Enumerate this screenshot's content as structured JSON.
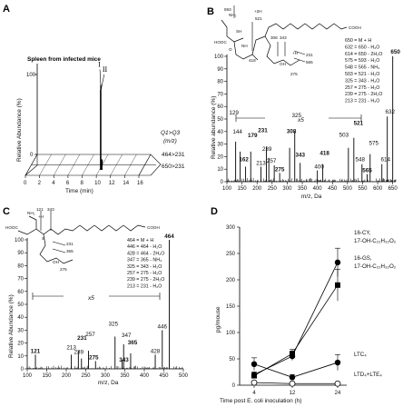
{
  "panels": {
    "A": {
      "label": "A",
      "title": "Spleen from infected mice",
      "ylabel": "Relative Abundance (%)",
      "xlabel": "Time (min)",
      "yticks": [
        "0",
        "100"
      ],
      "xticks": [
        "0",
        "2",
        "4",
        "6",
        "8",
        "10",
        "12",
        "14",
        "16"
      ],
      "peak_labels": [
        "I",
        "II"
      ],
      "q_header": "Q1>Q3",
      "q_unit": "(m/z)",
      "transitions": [
        "464>231",
        "650>231"
      ]
    },
    "B": {
      "label": "B",
      "ylabel": "Relative abundance (%)",
      "xlabel": "m/z, Da",
      "yticks": [
        "0",
        "10",
        "20",
        "30",
        "40",
        "50",
        "60",
        "70",
        "80",
        "90",
        "100"
      ],
      "xticks": [
        "100",
        "150",
        "200",
        "250",
        "300",
        "350",
        "400",
        "450",
        "500",
        "550",
        "600",
        "650"
      ],
      "magnify": "x5",
      "assignments": [
        "650 = M + H",
        "632 = 650 - H₂O",
        "614 = 650 - 2H₂O",
        "575 = 593 - H₂O",
        "548 = 565 - NH₃",
        "503 = 521 - H₂O",
        "325 = 343 - H₂O",
        "257 = 275 - H₂O",
        "239 = 275 - 2H₂O",
        "213 = 231 - H₂O"
      ],
      "structure_labels": [
        "593",
        "+2H",
        "521",
        "308",
        "343",
        "418",
        "231",
        "565",
        "275",
        "+H",
        "OH",
        "NH₂",
        "HOOC",
        "COOH",
        "SH",
        "NH",
        "O"
      ]
    },
    "C": {
      "label": "C",
      "ylabel": "Relative Abundance (%)",
      "xlabel": "m/z, Da",
      "yticks": [
        "0",
        "10",
        "20",
        "30",
        "40",
        "50",
        "60",
        "70",
        "80",
        "90",
        "100"
      ],
      "xticks": [
        "100",
        "150",
        "200",
        "250",
        "300",
        "350",
        "400",
        "450",
        "500"
      ],
      "magnify": "x5",
      "assignments": [
        "464 = M + H",
        "446 = 464 - H₂O",
        "428 = 464 - 2H₂O",
        "347 = 365 - NH₃",
        "325 = 343 - H₂O",
        "257 = 275 - H₂O",
        "239 = 275 - 2H₂O",
        "213 = 231 - H₂O"
      ],
      "structure_labels": [
        "121",
        "343",
        "+H",
        "231",
        "365",
        "275",
        "OH",
        "NH₂",
        "HOOC",
        "COOH",
        "S"
      ]
    },
    "D": {
      "label": "D",
      "ylabel": "pg/mouse",
      "xlabel": "Time post E. coli inoculation (h)",
      "yticks": [
        "0",
        "50",
        "100",
        "150",
        "200",
        "250",
        "300"
      ],
      "xticks": [
        "4",
        "12",
        "24"
      ],
      "series_labels": [
        [
          "16-CY,",
          "17-OH-C₂₂H₃₂O₂"
        ],
        [
          "16-GS,",
          "17-OH-C₂₂H₃₂O₂"
        ],
        [
          "LTC₄"
        ],
        [
          "LTD₄+LTE₄"
        ]
      ]
    }
  },
  "chart_data": [
    {
      "type": "line",
      "title": "Spleen from infected mice",
      "xlabel": "Time (min)",
      "ylabel": "Relative Abundance (%)",
      "xlim": [
        0,
        16
      ],
      "ylim": [
        0,
        100
      ],
      "series": [
        {
          "name": "464>231",
          "x": [
            9.8
          ],
          "y": [
            100
          ],
          "label": "I"
        },
        {
          "name": "650>231",
          "x": [
            10.6
          ],
          "y": [
            100
          ],
          "label": "II"
        }
      ]
    },
    {
      "type": "bar",
      "xlabel": "m/z, Da",
      "ylabel": "Relative abundance (%)",
      "xlim": [
        100,
        660
      ],
      "ylim": [
        0,
        100
      ],
      "peaks": [
        {
          "mz": 129,
          "y": 32,
          "label": "129",
          "bold": false
        },
        {
          "mz": 144,
          "y": 24,
          "label": "144",
          "bold": false
        },
        {
          "mz": 162,
          "y": 12,
          "label": "162",
          "bold": true
        },
        {
          "mz": 179,
          "y": 24,
          "label": "179",
          "bold": true
        },
        {
          "mz": 213,
          "y": 12,
          "label": "213",
          "bold": false
        },
        {
          "mz": 231,
          "y": 28,
          "label": "231",
          "bold": true
        },
        {
          "mz": 239,
          "y": 19,
          "label": "239",
          "bold": false
        },
        {
          "mz": 257,
          "y": 13,
          "label": "257",
          "bold": false
        },
        {
          "mz": 275,
          "y": 7,
          "label": "275",
          "bold": true
        },
        {
          "mz": 308,
          "y": 27,
          "label": "308",
          "bold": true
        },
        {
          "mz": 325,
          "y": 40,
          "label": "325",
          "bold": false
        },
        {
          "mz": 343,
          "y": 15,
          "label": "343",
          "bold": true
        },
        {
          "mz": 400,
          "y": 9,
          "label": "400",
          "bold": false
        },
        {
          "mz": 418,
          "y": 14,
          "label": "418",
          "bold": true
        },
        {
          "mz": 503,
          "y": 27,
          "label": "503",
          "bold": false
        },
        {
          "mz": 521,
          "y": 35,
          "label": "521",
          "bold": true
        },
        {
          "mz": 548,
          "y": 14,
          "label": "548",
          "bold": false
        },
        {
          "mz": 565,
          "y": 6,
          "label": "565",
          "bold": true
        },
        {
          "mz": 575,
          "y": 22,
          "label": "575",
          "bold": false
        },
        {
          "mz": 614,
          "y": 14,
          "label": "614",
          "bold": false
        },
        {
          "mz": 632,
          "y": 52,
          "label": "632",
          "bold": false
        },
        {
          "mz": 650,
          "y": 100,
          "label": "650",
          "bold": true
        }
      ]
    },
    {
      "type": "bar",
      "xlabel": "m/z, Da",
      "ylabel": "Relative Abundance (%)",
      "xlim": [
        100,
        500
      ],
      "ylim": [
        0,
        100
      ],
      "peaks": [
        {
          "mz": 121,
          "y": 11,
          "label": "121",
          "bold": true
        },
        {
          "mz": 213,
          "y": 11,
          "label": "213",
          "bold": false
        },
        {
          "mz": 231,
          "y": 14,
          "label": "231",
          "bold": true
        },
        {
          "mz": 239,
          "y": 8,
          "label": "239",
          "bold": false
        },
        {
          "mz": 257,
          "y": 14,
          "label": "257",
          "bold": false
        },
        {
          "mz": 275,
          "y": 6,
          "label": "275",
          "bold": true
        },
        {
          "mz": 325,
          "y": 25,
          "label": "325",
          "bold": false
        },
        {
          "mz": 343,
          "y": 7,
          "label": "343",
          "bold": true
        },
        {
          "mz": 347,
          "y": 19,
          "label": "347",
          "bold": false
        },
        {
          "mz": 365,
          "y": 12,
          "label": "365",
          "bold": true
        },
        {
          "mz": 428,
          "y": 11,
          "label": "428",
          "bold": false
        },
        {
          "mz": 446,
          "y": 30,
          "label": "446",
          "bold": false
        },
        {
          "mz": 464,
          "y": 100,
          "label": "464",
          "bold": true
        }
      ]
    },
    {
      "type": "line",
      "xlabel": "Time post E. coli inoculation (h)",
      "ylabel": "pg/mouse",
      "ylim": [
        0,
        300
      ],
      "categories": [
        "4",
        "12",
        "24"
      ],
      "series": [
        {
          "name": "16-CY, 17-OH-C₂₂H₃₂O₂",
          "values": [
            20,
            55,
            233
          ],
          "errors": [
            5,
            8,
            27
          ],
          "marker": "circle-filled"
        },
        {
          "name": "16-GS, 17-OH-C₂₂H₃₂O₂",
          "values": [
            18,
            60,
            190
          ],
          "errors": [
            4,
            8,
            30
          ],
          "marker": "square-filled"
        },
        {
          "name": "LTC₄",
          "values": [
            40,
            15,
            43
          ],
          "errors": [
            12,
            5,
            15
          ],
          "marker": "circle-filled"
        },
        {
          "name": "LTD₄+LTE₄",
          "values": [
            5,
            3,
            3
          ],
          "errors": [
            2,
            1,
            1
          ],
          "marker": "circle-open"
        }
      ]
    }
  ]
}
